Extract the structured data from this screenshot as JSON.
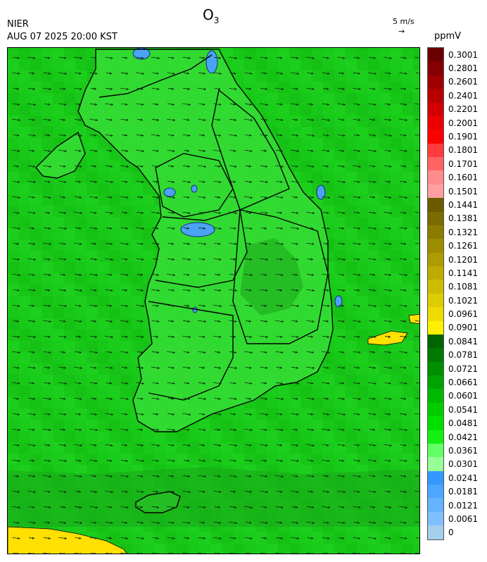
{
  "header": {
    "organization": "NIER",
    "timestamp": "AUG 07 2025 20:00 KST",
    "pollutant_main": "O",
    "pollutant_sub": "3",
    "wind_reference": "5 m/s",
    "wind_arrow_glyph": "→",
    "unit": "ppmV"
  },
  "colorbar": {
    "labels": [
      "0.3001",
      "0.2801",
      "0.2601",
      "0.2401",
      "0.2201",
      "0.2001",
      "0.1901",
      "0.1801",
      "0.1701",
      "0.1601",
      "0.1501",
      "0.1441",
      "0.1381",
      "0.1321",
      "0.1261",
      "0.1201",
      "0.1141",
      "0.1081",
      "0.1021",
      "0.0961",
      "0.0901",
      "0.0841",
      "0.0781",
      "0.0721",
      "0.0661",
      "0.0601",
      "0.0541",
      "0.0481",
      "0.0421",
      "0.0361",
      "0.0301",
      "0.0241",
      "0.0181",
      "0.0121",
      "0.0061",
      "0"
    ],
    "colors": [
      "#6b0000",
      "#850000",
      "#a00000",
      "#b80000",
      "#d20000",
      "#ee0000",
      "#ff0000",
      "#ff3c3c",
      "#ff6464",
      "#ff8c8c",
      "#ffa0a0",
      "#6a5a00",
      "#7a6c00",
      "#8b7c00",
      "#9c8c00",
      "#ad9c00",
      "#bdab00",
      "#cdbc00",
      "#ddcc00",
      "#ecdc00",
      "#fff000",
      "#006400",
      "#007a00",
      "#008f00",
      "#00a300",
      "#00b800",
      "#00cc00",
      "#00e000",
      "#14f014",
      "#64ff64",
      "#96ff96",
      "#3399ff",
      "#4da6ff",
      "#66b3ff",
      "#80bfff",
      "#a6cfee"
    ]
  },
  "map": {
    "background_color": "#17c817",
    "land_color": "#34dc34",
    "high_zone_color": "#1aa61a",
    "low_ozone_color": "#4aa3f5",
    "coast_color": "#ffe000",
    "boundary_color": "#000000"
  },
  "wind": {
    "direction_deg": 8,
    "note_unit": "m/s"
  }
}
